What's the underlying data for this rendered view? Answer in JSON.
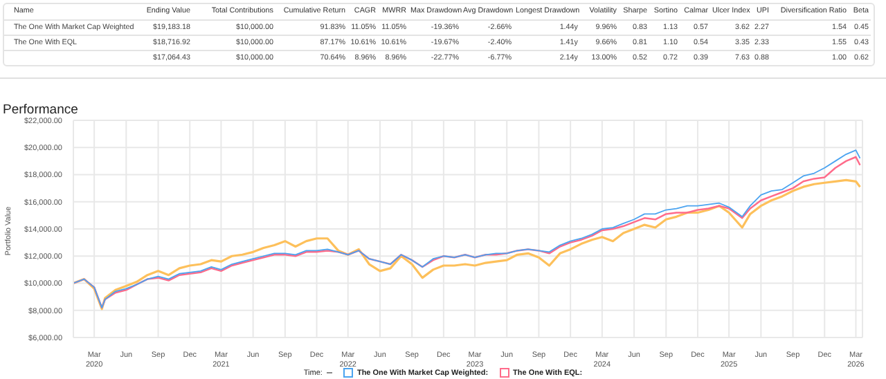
{
  "chart_data": [
    {
      "type": "other",
      "categories": [
        "Name",
        "Ending Value",
        "Total Contributions",
        "Cumulative Return",
        "CAGR",
        "MWRR",
        "Max Drawdown",
        "Avg Drawdown",
        "Longest Drawdown",
        "Volatility",
        "Sharpe",
        "Sortino",
        "Calmar",
        "Ulcer Index",
        "UPI",
        "Diversification Ratio",
        "Beta"
      ],
      "cell_labels": [
        [
          "The One With Market Cap Weighted",
          "$19,183.18",
          "$10,000.00",
          "91.83%",
          "11.05%",
          "11.05%",
          "-19.36%",
          "-2.66%",
          "1.44y",
          "9.96%",
          "0.83",
          "1.13",
          "0.57",
          "3.62",
          "2.27",
          "1.54",
          "0.45"
        ],
        [
          "The One With EQL",
          "$18,716.92",
          "$10,000.00",
          "87.17%",
          "10.61%",
          "10.61%",
          "-19.67%",
          "-2.40%",
          "1.41y",
          "9.66%",
          "0.81",
          "1.10",
          "0.54",
          "3.35",
          "2.33",
          "1.55",
          "0.43"
        ],
        [
          null,
          "$17,064.43",
          "$10,000.00",
          "70.64%",
          "8.96%",
          "8.96%",
          "-22.77%",
          "-6.77%",
          "2.14y",
          "13.00%",
          "0.52",
          "0.72",
          "0.39",
          "7.63",
          "0.88",
          "1.00",
          "0.62"
        ]
      ]
    },
    {
      "type": "line",
      "title": "Performance",
      "ylabel": "Portfolio Value",
      "legend_title": "Time:",
      "legend": "bottom",
      "grid": true,
      "marker": "none",
      "x": [
        "2020-01-01",
        "2020-02-01",
        "2020-03-01",
        "2020-03-23",
        "2020-04-01",
        "2020-05-01",
        "2020-06-01",
        "2020-07-01",
        "2020-08-01",
        "2020-09-01",
        "2020-10-01",
        "2020-11-01",
        "2020-12-01",
        "2021-01-01",
        "2021-02-01",
        "2021-03-01",
        "2021-04-01",
        "2021-05-01",
        "2021-06-01",
        "2021-07-01",
        "2021-08-01",
        "2021-09-01",
        "2021-10-01",
        "2021-11-01",
        "2021-12-01",
        "2022-01-01",
        "2022-02-01",
        "2022-03-01",
        "2022-04-01",
        "2022-05-01",
        "2022-06-01",
        "2022-07-01",
        "2022-08-01",
        "2022-09-01",
        "2022-10-01",
        "2022-11-01",
        "2022-12-01",
        "2023-01-01",
        "2023-02-01",
        "2023-03-01",
        "2023-04-01",
        "2023-05-01",
        "2023-06-01",
        "2023-07-01",
        "2023-08-01",
        "2023-09-01",
        "2023-10-01",
        "2023-11-01",
        "2023-12-01",
        "2024-01-01",
        "2024-02-01",
        "2024-03-01",
        "2024-04-01",
        "2024-05-01",
        "2024-06-01",
        "2024-07-01",
        "2024-08-01",
        "2024-09-01",
        "2024-10-01",
        "2024-11-01",
        "2024-12-01",
        "2025-01-01",
        "2025-02-01",
        "2025-03-01",
        "2025-04-08",
        "2025-05-01",
        "2025-06-01",
        "2025-07-01",
        "2025-08-01",
        "2025-09-01",
        "2025-10-01",
        "2025-11-01",
        "2025-12-01",
        "2026-01-01",
        "2026-02-01",
        "2026-03-01",
        "2026-03-13"
      ],
      "xlim": [
        "2020-01-01",
        "2026-03-20"
      ],
      "xticks": [
        {
          "value": "2020-03-01",
          "label": "Mar\n2020"
        },
        {
          "value": "2020-06-01",
          "label": "Jun"
        },
        {
          "value": "2020-09-01",
          "label": "Sep"
        },
        {
          "value": "2020-12-01",
          "label": "Dec"
        },
        {
          "value": "2021-03-01",
          "label": "Mar\n2021"
        },
        {
          "value": "2021-06-01",
          "label": "Jun"
        },
        {
          "value": "2021-09-01",
          "label": "Sep"
        },
        {
          "value": "2021-12-01",
          "label": "Dec"
        },
        {
          "value": "2022-03-01",
          "label": "Mar\n2022"
        },
        {
          "value": "2022-06-01",
          "label": "Jun"
        },
        {
          "value": "2022-09-01",
          "label": "Sep"
        },
        {
          "value": "2022-12-01",
          "label": "Dec"
        },
        {
          "value": "2023-03-01",
          "label": "Mar\n2023"
        },
        {
          "value": "2023-06-01",
          "label": "Jun"
        },
        {
          "value": "2023-09-01",
          "label": "Sep"
        },
        {
          "value": "2023-12-01",
          "label": "Dec"
        },
        {
          "value": "2024-03-01",
          "label": "Mar\n2024"
        },
        {
          "value": "2024-06-01",
          "label": "Jun"
        },
        {
          "value": "2024-09-01",
          "label": "Sep"
        },
        {
          "value": "2024-12-01",
          "label": "Dec"
        },
        {
          "value": "2025-03-01",
          "label": "Mar\n2025"
        },
        {
          "value": "2025-06-01",
          "label": "Jun"
        },
        {
          "value": "2025-09-01",
          "label": "Sep"
        },
        {
          "value": "2025-12-01",
          "label": "Dec"
        },
        {
          "value": "2026-03-01",
          "label": "Mar\n2026"
        }
      ],
      "ylim": [
        6000,
        22000
      ],
      "yticks": [
        {
          "value": 6000,
          "label": "$6,000.00"
        },
        {
          "value": 8000,
          "label": "$8,000.00"
        },
        {
          "value": 10000,
          "label": "$10,000.00"
        },
        {
          "value": 12000,
          "label": "$12,000.00"
        },
        {
          "value": 14000,
          "label": "$14,000.00"
        },
        {
          "value": 16000,
          "label": "$16,000.00"
        },
        {
          "value": 18000,
          "label": "$18,000.00"
        },
        {
          "value": 20000,
          "label": "$20,000.00"
        },
        {
          "value": 22000,
          "label": "$22,000.00"
        }
      ],
      "series": [
        {
          "name": "The One With Market Cap Weighted:",
          "color": "#4aa3f0",
          "values": [
            10000,
            10300,
            9700,
            8200,
            8800,
            9400,
            9600,
            9900,
            10300,
            10500,
            10300,
            10700,
            10800,
            10900,
            11200,
            11000,
            11400,
            11600,
            11800,
            12000,
            12200,
            12200,
            12100,
            12400,
            12400,
            12500,
            12300,
            12100,
            12400,
            11800,
            11600,
            11400,
            12100,
            11700,
            11200,
            11800,
            12000,
            11900,
            12100,
            11900,
            12100,
            12200,
            12200,
            12400,
            12500,
            12400,
            12300,
            12800,
            13100,
            13300,
            13600,
            14000,
            14100,
            14400,
            14700,
            15100,
            15100,
            15400,
            15500,
            15700,
            15700,
            15800,
            15900,
            15600,
            14900,
            15700,
            16500,
            16800,
            16900,
            17400,
            17900,
            18100,
            18500,
            19000,
            19500,
            19800,
            19200
          ]
        },
        {
          "name": "The One With EQL:",
          "color": "#ff6b8a",
          "values": [
            10000,
            10300,
            9700,
            8200,
            8800,
            9300,
            9500,
            9900,
            10300,
            10400,
            10200,
            10600,
            10700,
            10800,
            11100,
            10900,
            11300,
            11500,
            11700,
            11900,
            12100,
            12100,
            12000,
            12300,
            12300,
            12400,
            12300,
            12100,
            12400,
            11800,
            11600,
            11400,
            12100,
            11700,
            11200,
            11700,
            12000,
            11900,
            12100,
            11900,
            12100,
            12100,
            12200,
            12400,
            12500,
            12400,
            12200,
            12700,
            13000,
            13200,
            13500,
            13900,
            14000,
            14200,
            14500,
            14800,
            14700,
            15100,
            15200,
            15200,
            15400,
            15500,
            15700,
            15500,
            14800,
            15500,
            16100,
            16400,
            16700,
            17000,
            17500,
            17700,
            17800,
            18500,
            19000,
            19300,
            18700
          ]
        },
        {
          "color": "#fdc05b",
          "values": [
            10000,
            10300,
            9600,
            8100,
            8900,
            9500,
            9800,
            10100,
            10600,
            10900,
            10600,
            11100,
            11300,
            11400,
            11700,
            11600,
            12000,
            12100,
            12300,
            12600,
            12800,
            13100,
            12700,
            13100,
            13300,
            13300,
            12400,
            12100,
            12500,
            11400,
            10900,
            11100,
            12000,
            11400,
            10400,
            11000,
            11300,
            11300,
            11400,
            11300,
            11500,
            11600,
            11700,
            12100,
            12200,
            11900,
            11300,
            12200,
            12500,
            12900,
            13200,
            13400,
            13100,
            13700,
            14000,
            14300,
            14100,
            14700,
            14900,
            15200,
            15200,
            15400,
            15700,
            15200,
            14100,
            15100,
            15700,
            16100,
            16400,
            16800,
            17100,
            17300,
            17400,
            17500,
            17600,
            17500,
            17100
          ]
        }
      ]
    }
  ]
}
